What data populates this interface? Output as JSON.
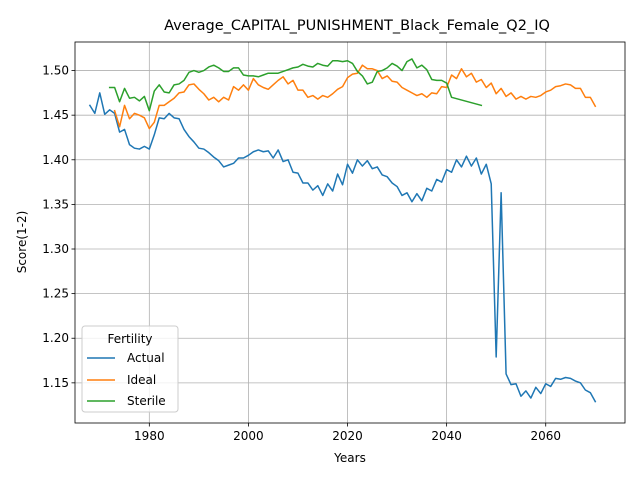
{
  "chart_data": {
    "type": "line",
    "title": "Average_CAPITAL_PUNISHMENT_Black_Female_Q2_IQ",
    "xlabel": "Years",
    "ylabel": "Score(1-2)",
    "xlim": [
      1965,
      2076
    ],
    "ylim": [
      1.105,
      1.532
    ],
    "xticks": [
      1980,
      2000,
      2020,
      2040,
      2060
    ],
    "yticks": [
      1.15,
      1.2,
      1.25,
      1.3,
      1.35,
      1.4,
      1.45,
      1.5
    ],
    "ytick_labels": [
      "1.15",
      "1.20",
      "1.25",
      "1.30",
      "1.35",
      "1.40",
      "1.45",
      "1.50"
    ],
    "grid": true,
    "legend": {
      "title": "Fertility",
      "position": "lower-left"
    },
    "series": [
      {
        "name": "Actual",
        "color": "#1f77b4",
        "x": [
          1968,
          1969,
          1970,
          1971,
          1972,
          1973,
          1974,
          1975,
          1976,
          1977,
          1978,
          1979,
          1980,
          1981,
          1982,
          1983,
          1984,
          1985,
          1986,
          1987,
          1988,
          1989,
          1990,
          1991,
          1992,
          1993,
          1994,
          1995,
          1996,
          1997,
          1998,
          1999,
          2000,
          2001,
          2002,
          2003,
          2004,
          2005,
          2006,
          2007,
          2008,
          2009,
          2010,
          2011,
          2012,
          2013,
          2014,
          2015,
          2016,
          2017,
          2018,
          2019,
          2020,
          2021,
          2022,
          2023,
          2024,
          2025,
          2026,
          2027,
          2028,
          2029,
          2030,
          2031,
          2032,
          2033,
          2034,
          2035,
          2036,
          2037,
          2038,
          2039,
          2040,
          2041,
          2042,
          2043,
          2044,
          2045,
          2046,
          2047,
          2048,
          2049,
          2050,
          2051,
          2052,
          2053,
          2054,
          2055,
          2056,
          2057,
          2058,
          2059,
          2060,
          2061,
          2062,
          2063,
          2064,
          2065,
          2066,
          2067,
          2068,
          2069,
          2070
        ],
        "y": [
          1.461,
          1.452,
          1.475,
          1.451,
          1.456,
          1.452,
          1.431,
          1.434,
          1.417,
          1.413,
          1.412,
          1.415,
          1.412,
          1.428,
          1.447,
          1.446,
          1.452,
          1.447,
          1.446,
          1.434,
          1.426,
          1.42,
          1.413,
          1.412,
          1.408,
          1.403,
          1.399,
          1.392,
          1.394,
          1.396,
          1.402,
          1.402,
          1.405,
          1.409,
          1.411,
          1.409,
          1.41,
          1.402,
          1.411,
          1.398,
          1.4,
          1.386,
          1.385,
          1.374,
          1.374,
          1.366,
          1.371,
          1.36,
          1.373,
          1.365,
          1.384,
          1.372,
          1.395,
          1.385,
          1.4,
          1.393,
          1.399,
          1.39,
          1.392,
          1.383,
          1.381,
          1.374,
          1.37,
          1.36,
          1.363,
          1.353,
          1.362,
          1.354,
          1.368,
          1.365,
          1.378,
          1.375,
          1.389,
          1.386,
          1.4,
          1.392,
          1.404,
          1.393,
          1.402,
          1.384,
          1.395,
          1.373,
          1.179,
          1.363,
          1.16,
          1.148,
          1.149,
          1.135,
          1.141,
          1.133,
          1.145,
          1.138,
          1.149,
          1.146,
          1.155,
          1.154,
          1.156,
          1.155,
          1.152,
          1.15,
          1.142,
          1.139,
          1.129
        ]
      },
      {
        "name": "Ideal",
        "color": "#ff7f0e",
        "x": [
          1973,
          1974,
          1975,
          1976,
          1977,
          1978,
          1979,
          1980,
          1981,
          1982,
          1983,
          1984,
          1985,
          1986,
          1987,
          1988,
          1989,
          1990,
          1991,
          1992,
          1993,
          1994,
          1995,
          1996,
          1997,
          1998,
          1999,
          2000,
          2001,
          2002,
          2003,
          2004,
          2005,
          2006,
          2007,
          2008,
          2009,
          2010,
          2011,
          2012,
          2013,
          2014,
          2015,
          2016,
          2017,
          2018,
          2019,
          2020,
          2021,
          2022,
          2023,
          2024,
          2025,
          2026,
          2027,
          2028,
          2029,
          2030,
          2031,
          2032,
          2033,
          2034,
          2035,
          2036,
          2037,
          2038,
          2039,
          2040,
          2041,
          2042,
          2043,
          2044,
          2045,
          2046,
          2047,
          2048,
          2049,
          2050,
          2051,
          2052,
          2053,
          2054,
          2055,
          2056,
          2057,
          2058,
          2059,
          2060,
          2061,
          2062,
          2063,
          2064,
          2065,
          2066,
          2067,
          2068,
          2069,
          2070
        ],
        "y": [
          1.455,
          1.437,
          1.461,
          1.446,
          1.452,
          1.45,
          1.447,
          1.435,
          1.442,
          1.461,
          1.461,
          1.465,
          1.469,
          1.475,
          1.476,
          1.484,
          1.485,
          1.479,
          1.474,
          1.467,
          1.47,
          1.465,
          1.47,
          1.467,
          1.482,
          1.478,
          1.484,
          1.478,
          1.491,
          1.484,
          1.481,
          1.479,
          1.484,
          1.489,
          1.493,
          1.485,
          1.489,
          1.478,
          1.478,
          1.47,
          1.472,
          1.468,
          1.472,
          1.47,
          1.474,
          1.479,
          1.482,
          1.492,
          1.496,
          1.497,
          1.506,
          1.502,
          1.502,
          1.5,
          1.491,
          1.494,
          1.488,
          1.487,
          1.481,
          1.478,
          1.475,
          1.472,
          1.474,
          1.47,
          1.475,
          1.474,
          1.482,
          1.481,
          1.495,
          1.491,
          1.502,
          1.493,
          1.497,
          1.487,
          1.49,
          1.481,
          1.486,
          1.474,
          1.48,
          1.471,
          1.475,
          1.468,
          1.471,
          1.468,
          1.471,
          1.47,
          1.472,
          1.476,
          1.478,
          1.482,
          1.483,
          1.485,
          1.484,
          1.48,
          1.48,
          1.47,
          1.47,
          1.46
        ]
      },
      {
        "name": "Sterile",
        "color": "#2ca02c",
        "x": [
          1972,
          1973,
          1974,
          1975,
          1976,
          1977,
          1978,
          1979,
          1980,
          1981,
          1982,
          1983,
          1984,
          1985,
          1986,
          1987,
          1988,
          1989,
          1990,
          1991,
          1992,
          1993,
          1994,
          1995,
          1996,
          1997,
          1998,
          1999,
          2000,
          2001,
          2002,
          2003,
          2004,
          2005,
          2006,
          2007,
          2008,
          2009,
          2010,
          2011,
          2012,
          2013,
          2014,
          2015,
          2016,
          2017,
          2018,
          2019,
          2020,
          2021,
          2022,
          2023,
          2024,
          2025,
          2026,
          2027,
          2028,
          2029,
          2030,
          2031,
          2032,
          2033,
          2034,
          2035,
          2036,
          2037,
          2038,
          2039,
          2040,
          2041,
          2047
        ],
        "y": [
          1.481,
          1.481,
          1.465,
          1.48,
          1.469,
          1.47,
          1.466,
          1.471,
          1.455,
          1.477,
          1.484,
          1.476,
          1.475,
          1.484,
          1.485,
          1.489,
          1.498,
          1.5,
          1.498,
          1.5,
          1.504,
          1.506,
          1.503,
          1.499,
          1.499,
          1.503,
          1.503,
          1.495,
          1.494,
          1.494,
          1.493,
          1.495,
          1.497,
          1.497,
          1.497,
          1.499,
          1.501,
          1.503,
          1.504,
          1.507,
          1.505,
          1.504,
          1.508,
          1.506,
          1.505,
          1.511,
          1.511,
          1.51,
          1.511,
          1.508,
          1.499,
          1.494,
          1.485,
          1.487,
          1.499,
          1.5,
          1.503,
          1.508,
          1.505,
          1.5,
          1.51,
          1.513,
          1.503,
          1.506,
          1.501,
          1.49,
          1.489,
          1.489,
          1.486,
          1.47,
          1.461
        ]
      }
    ]
  }
}
